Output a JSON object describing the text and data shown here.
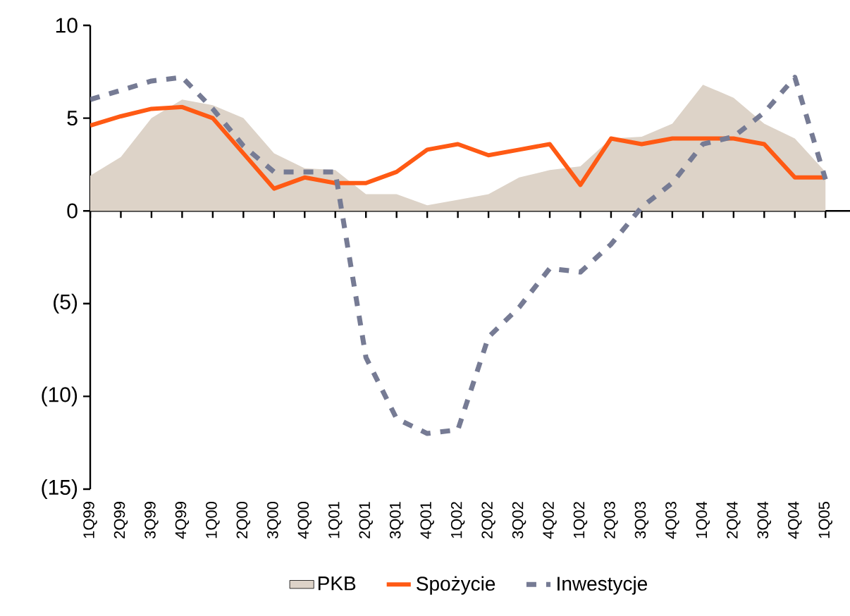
{
  "chart_data": {
    "type": "line",
    "categories": [
      "1Q99",
      "2Q99",
      "3Q99",
      "4Q99",
      "1Q00",
      "2Q00",
      "3Q00",
      "4Q00",
      "1Q01",
      "2Q01",
      "3Q01",
      "4Q01",
      "1Q02",
      "2Q02",
      "3Q02",
      "4Q02",
      "1Q02",
      "2Q03",
      "3Q03",
      "4Q03",
      "1Q04",
      "2Q04",
      "3Q04",
      "4Q04",
      "1Q05"
    ],
    "series": [
      {
        "name": "PKB",
        "type": "area",
        "color": "#ddd3c8",
        "values": [
          1.9,
          2.9,
          5.0,
          6.0,
          5.7,
          5.0,
          3.1,
          2.3,
          2.2,
          0.9,
          0.9,
          0.3,
          0.6,
          0.9,
          1.8,
          2.2,
          2.4,
          3.9,
          4.0,
          4.7,
          6.8,
          6.1,
          4.7,
          3.9,
          2.1
        ]
      },
      {
        "name": "Spożycie",
        "color": "#ff5a14",
        "line_style": "solid",
        "values": [
          4.6,
          5.1,
          5.5,
          5.6,
          5.0,
          3.1,
          1.2,
          1.8,
          1.5,
          1.5,
          2.1,
          3.3,
          3.6,
          3.0,
          3.3,
          3.6,
          1.4,
          3.9,
          3.6,
          3.9,
          3.9,
          3.9,
          3.6,
          1.8,
          1.8
        ]
      },
      {
        "name": "Inwestycje",
        "color": "#767b94",
        "line_style": "dashed",
        "values": [
          6.0,
          6.5,
          7.0,
          7.2,
          5.5,
          3.5,
          2.1,
          2.1,
          2.1,
          -7.9,
          -11.2,
          -12.0,
          -11.8,
          -6.8,
          -5.2,
          -3.1,
          -3.3,
          -1.8,
          0.2,
          1.5,
          3.6,
          4.0,
          5.3,
          7.2,
          1.7
        ]
      }
    ],
    "ylim": [
      -15,
      10
    ],
    "yticks": [
      10,
      5,
      0,
      {
        "value": -5,
        "label": "(5)"
      },
      {
        "value": -10,
        "label": "(10)"
      },
      {
        "value": -15,
        "label": "(15)"
      }
    ],
    "legend": "bottom",
    "marker": "none"
  }
}
